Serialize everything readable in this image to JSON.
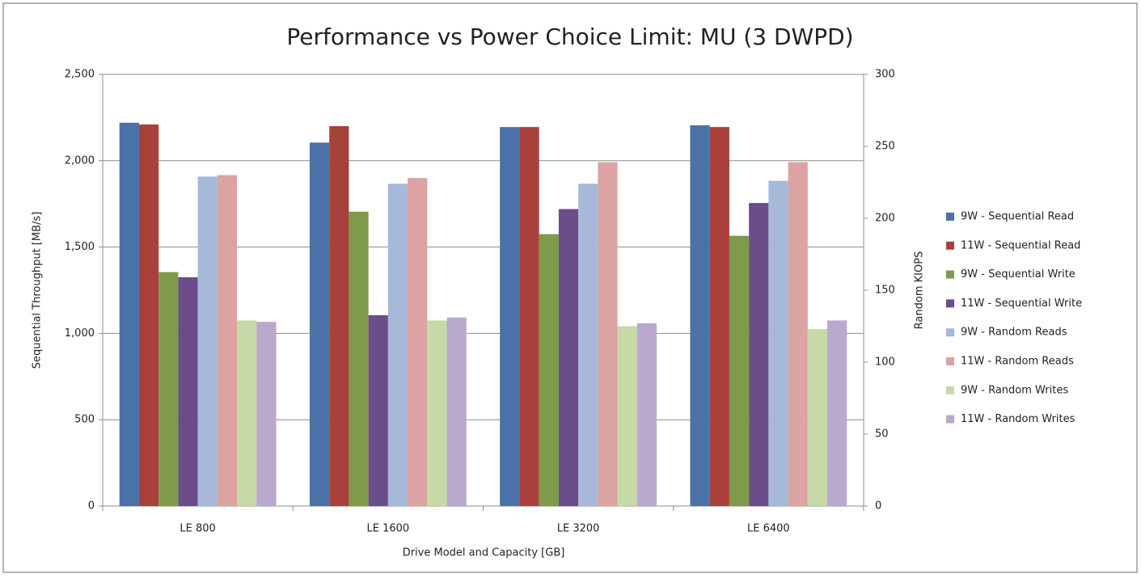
{
  "chart_data": {
    "type": "bar",
    "title": "Performance vs Power Choice Limit: MU (3 DWPD)",
    "x_label": "Drive Model and Capacity [GB]",
    "y_label": "Sequential Throughput [MB/s]",
    "y2_label": "Random KIOPS",
    "categories": [
      "LE 800",
      "LE 1600",
      "LE 3200",
      "LE 6400"
    ],
    "series": [
      {
        "name": "9W - Sequential Read",
        "color": "#4a72a8",
        "values": [
          2220,
          2105,
          2195,
          2205
        ]
      },
      {
        "name": "11W - Sequential Read",
        "color": "#a8403c",
        "values": [
          2210,
          2200,
          2195,
          2195
        ]
      },
      {
        "name": "9W - Sequential Write",
        "color": "#7f9a48",
        "values": [
          1355,
          1705,
          1575,
          1565
        ]
      },
      {
        "name": "11W - Sequential Write",
        "color": "#6a4d8a",
        "values": [
          1325,
          1105,
          1720,
          1755
        ]
      },
      {
        "name": "9W - Random Reads",
        "color": "#a6b9d9",
        "axis": "y2",
        "values": [
          229,
          224,
          224,
          226
        ]
      },
      {
        "name": "11W - Random Reads",
        "color": "#dba3a2",
        "axis": "y2",
        "values": [
          230,
          228,
          239,
          239
        ]
      },
      {
        "name": "9W - Random Writes",
        "color": "#c7d9a6",
        "axis": "y2",
        "values": [
          129,
          129,
          125,
          123
        ]
      },
      {
        "name": "11W - Random Writes",
        "color": "#b9a9cc",
        "axis": "y2",
        "values": [
          128,
          131,
          127,
          129
        ]
      }
    ],
    "ylim": [
      0,
      2500
    ],
    "yticks": [
      0,
      500,
      {
        "value": 1000,
        "label": "1,000"
      },
      {
        "value": 1500,
        "label": "1,500"
      },
      {
        "value": 2000,
        "label": "2,000"
      },
      {
        "value": 2500,
        "label": "2,500"
      }
    ],
    "y2lim": [
      0,
      300
    ],
    "y2ticks": [
      0,
      50,
      100,
      150,
      200,
      250,
      300
    ],
    "grid": true,
    "legend": "right"
  }
}
